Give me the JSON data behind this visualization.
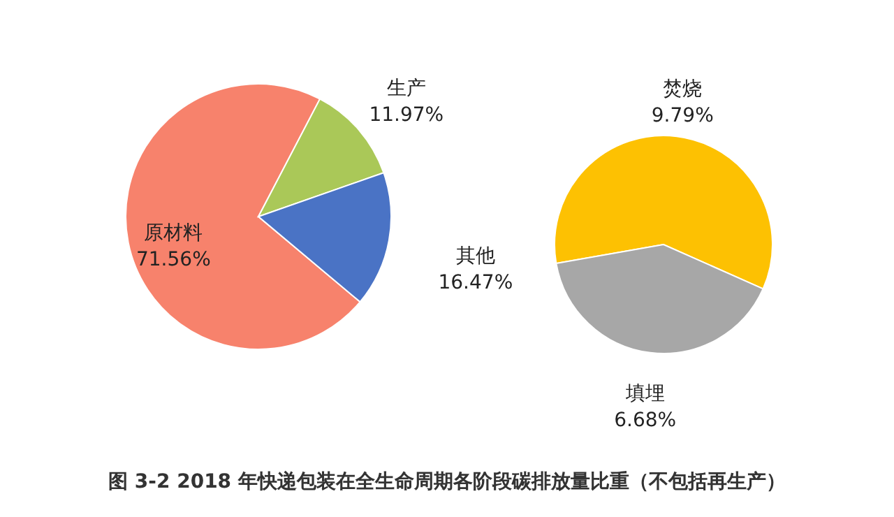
{
  "chart_data": [
    {
      "type": "pie",
      "title": "图 3-2 2018 年快递包装在全生命周期各阶段碳排放量比重（不包括再生产）",
      "categories": [
        "原材料",
        "生产",
        "其他"
      ],
      "values": [
        71.56,
        11.97,
        16.47
      ],
      "colors": [
        "#f7826c",
        "#aac858",
        "#4a73c5"
      ],
      "value_labels": [
        "71.56%",
        "11.97%",
        "16.47%"
      ]
    },
    {
      "type": "pie",
      "categories": [
        "焚烧",
        "填埋"
      ],
      "values": [
        9.79,
        6.68
      ],
      "colors": [
        "#fdc102",
        "#a7a7a7"
      ],
      "value_labels": [
        "9.79%",
        "6.68%"
      ]
    }
  ]
}
